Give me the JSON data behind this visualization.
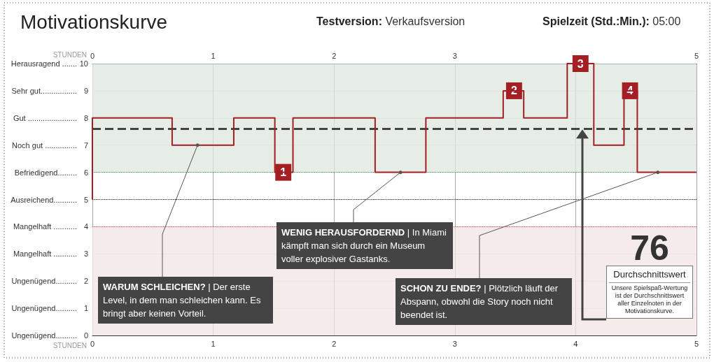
{
  "chart_data": {
    "type": "step",
    "title": "Motivationskurve",
    "x": [
      0,
      0,
      0.66,
      1.17,
      1.51,
      1.66,
      2.34,
      2.76,
      3.4,
      3.57,
      3.93,
      4.15,
      4.4,
      4.51,
      5
    ],
    "values": [
      5,
      8,
      7,
      8,
      6,
      8,
      6,
      8,
      9,
      8,
      10,
      7,
      9,
      6,
      6
    ],
    "color": "#a31f24",
    "xlim": [
      0,
      5
    ],
    "xticks": [
      0,
      1,
      2,
      3,
      4,
      5
    ],
    "xlabel": "STUNDEN",
    "x2lim": [
      0,
      5
    ],
    "x2ticks": [
      0,
      1,
      2,
      3,
      5
    ],
    "x2label": "STUNDEN",
    "ylim": [
      0,
      10
    ],
    "yticks": [
      0,
      1,
      2,
      3,
      4,
      5,
      6,
      7,
      8,
      9,
      10
    ],
    "grid": true,
    "marker": "none",
    "line_style": "solid",
    "bands": [
      {
        "axis": "y",
        "from": 6,
        "to": 10,
        "color": "#dde7dd"
      },
      {
        "axis": "y",
        "from": 0,
        "to": 4,
        "color": "#f1e4e4"
      }
    ],
    "ref_lines": [
      {
        "axis": "y",
        "value": 6,
        "color": "#2e8b57",
        "line_style": "dotted"
      },
      {
        "axis": "y",
        "value": 5,
        "color": "#222222",
        "line_style": "dotted"
      },
      {
        "axis": "y",
        "value": 4,
        "color": "#c0392b",
        "line_style": "dotted"
      },
      {
        "axis": "y",
        "value": 7.6,
        "color": "#444444",
        "line_style": "dashed"
      }
    ],
    "annotations": [
      "Testversion: Verkaufsversion",
      "Spielzeit (Std.:Min.): 05:00",
      "76",
      "Durchschnittswert",
      "Unsere Spielspaß-Wertung ist der Durchschnittswert aller Einzelnoten in der Motivationskurve.",
      "Ungenügend..........",
      "Ungenügend..........",
      "Ungenügend..........",
      "Mangelhaft ...........",
      "Mangelhaft ...........",
      "Ausreichend...........",
      "Befriedigend.........",
      "Noch gut ...............",
      "Gut .......................",
      "Sehr gut.................",
      "Herausragend .......",
      {
        "text": "WARUM SCHLEICHEN? | Der erste Level, in dem man schleichen kann. Es bringt aber keinen Vorteil.",
        "x": 0.87,
        "y": 7
      },
      {
        "text": "WENIG HERAUSFORDERND | In Miami kämpft man sich durch ein Museum voller explosiver Gastanks.",
        "x": 2.55,
        "y": 6
      },
      {
        "text": "SCHON ZU ENDE? | Plötzlich läuft der Abspann, obwohl die Story noch nicht beendet ist.",
        "x": 4.68,
        "y": 6
      },
      {
        "text": "1",
        "x": 1.58,
        "y": 6
      },
      {
        "text": "2",
        "x": 3.49,
        "y": 9
      },
      {
        "text": "3",
        "x": 4.04,
        "y": 10
      },
      {
        "text": "4",
        "x": 4.45,
        "y": 9
      }
    ]
  }
}
